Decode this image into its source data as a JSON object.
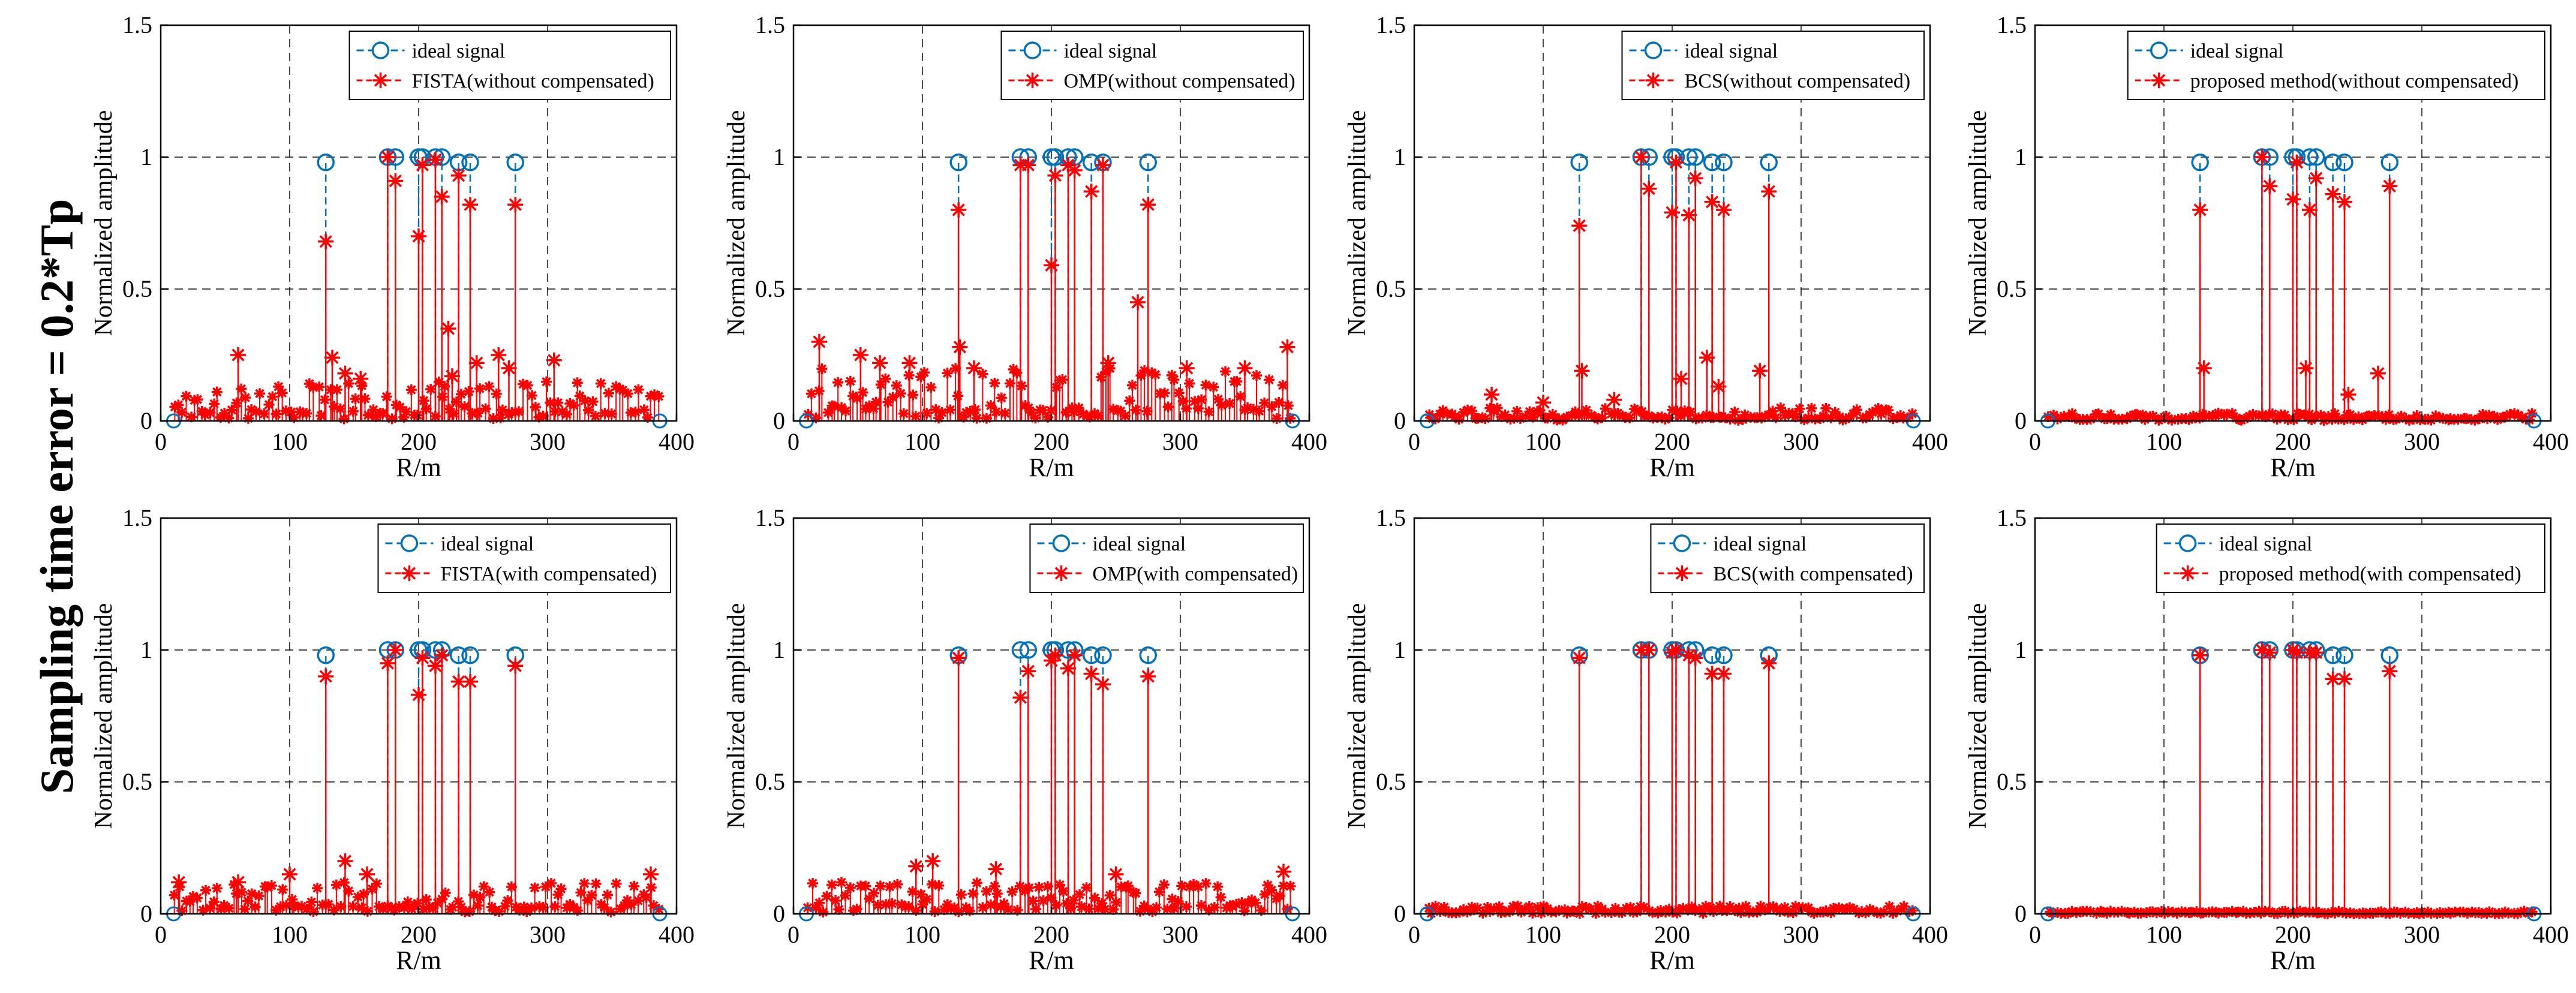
{
  "figure": {
    "row_label": "Sampling time error = 0.2*Tp",
    "colors": {
      "ideal": "#0072BD",
      "reconstructed": "#FF0000",
      "grid": "#000000",
      "axis": "#000000"
    }
  },
  "chart_data": [
    {
      "id": "fista-without",
      "type": "stem",
      "xlabel": "R/m",
      "ylabel": "Normalized amplitude",
      "xlim": [
        0,
        400
      ],
      "ylim": [
        0,
        1.5
      ],
      "xticks": [
        0,
        100,
        200,
        300,
        400
      ],
      "yticks": [
        0,
        0.5,
        1,
        1.5
      ],
      "legend": [
        "ideal signal",
        "FISTA(without compensated)"
      ],
      "legend_position": "top-right",
      "ideal": {
        "x": [
          128,
          176,
          182,
          200,
          203,
          213,
          218,
          231,
          240,
          275
        ],
        "y": [
          0.98,
          1.0,
          1.0,
          1.0,
          1.0,
          1.0,
          1.0,
          0.98,
          0.98,
          0.98
        ]
      },
      "recon_peaks": {
        "x": [
          128,
          176,
          182,
          200,
          203,
          213,
          218,
          231,
          240,
          275,
          133,
          223,
          60,
          262,
          305,
          270,
          143,
          245,
          155,
          226
        ],
        "y": [
          0.68,
          1.0,
          0.91,
          0.7,
          0.97,
          0.99,
          0.85,
          0.93,
          0.82,
          0.82,
          0.24,
          0.35,
          0.25,
          0.25,
          0.23,
          0.2,
          0.18,
          0.22,
          0.16,
          0.17
        ]
      },
      "noise_max": 0.15
    },
    {
      "id": "omp-without",
      "type": "stem",
      "xlabel": "R/m",
      "ylabel": "Normalized amplitude",
      "xlim": [
        0,
        400
      ],
      "ylim": [
        0,
        1.5
      ],
      "xticks": [
        0,
        100,
        200,
        300,
        400
      ],
      "yticks": [
        0,
        0.5,
        1,
        1.5
      ],
      "legend": [
        "ideal signal",
        "OMP(without compensated)"
      ],
      "legend_position": "top-right",
      "ideal": {
        "x": [
          128,
          176,
          182,
          200,
          203,
          213,
          218,
          231,
          240,
          275
        ],
        "y": [
          0.98,
          1.0,
          1.0,
          1.0,
          1.0,
          1.0,
          1.0,
          0.98,
          0.98,
          0.98
        ]
      },
      "recon_peaks": {
        "x": [
          128,
          176,
          182,
          200,
          203,
          213,
          218,
          231,
          240,
          275,
          129,
          267,
          383,
          20,
          52,
          67,
          90,
          140,
          244,
          305,
          350
        ],
        "y": [
          0.8,
          0.97,
          0.97,
          0.59,
          0.93,
          0.97,
          0.95,
          0.87,
          0.97,
          0.82,
          0.28,
          0.45,
          0.28,
          0.3,
          0.25,
          0.22,
          0.22,
          0.2,
          0.22,
          0.2,
          0.2
        ]
      },
      "noise_max": 0.2
    },
    {
      "id": "bcs-without",
      "type": "stem",
      "xlabel": "R/m",
      "ylabel": "Normalized amplitude",
      "xlim": [
        0,
        400
      ],
      "ylim": [
        0,
        1.5
      ],
      "xticks": [
        0,
        100,
        200,
        300,
        400
      ],
      "yticks": [
        0,
        0.5,
        1,
        1.5
      ],
      "legend": [
        "ideal signal",
        "BCS(without compensated)"
      ],
      "legend_position": "top-right",
      "ideal": {
        "x": [
          128,
          176,
          182,
          200,
          203,
          213,
          218,
          231,
          240,
          275
        ],
        "y": [
          0.98,
          1.0,
          1.0,
          1.0,
          1.0,
          1.0,
          1.0,
          0.98,
          0.98,
          0.98
        ]
      },
      "recon_peaks": {
        "x": [
          128,
          176,
          182,
          200,
          203,
          213,
          218,
          231,
          240,
          275,
          130,
          227,
          268,
          207,
          236,
          60,
          155,
          100
        ],
        "y": [
          0.74,
          1.0,
          0.88,
          0.79,
          0.98,
          0.78,
          0.92,
          0.83,
          0.8,
          0.87,
          0.19,
          0.24,
          0.19,
          0.16,
          0.13,
          0.1,
          0.08,
          0.07
        ]
      },
      "noise_max": 0.05
    },
    {
      "id": "proposed-without",
      "type": "stem",
      "xlabel": "R/m",
      "ylabel": "Normalized amplitude",
      "xlim": [
        0,
        400
      ],
      "ylim": [
        0,
        1.5
      ],
      "xticks": [
        0,
        100,
        200,
        300,
        400
      ],
      "yticks": [
        0,
        0.5,
        1,
        1.5
      ],
      "legend": [
        "ideal signal",
        "proposed method(without compensated)"
      ],
      "legend_position": "top-right",
      "ideal": {
        "x": [
          128,
          176,
          182,
          200,
          203,
          213,
          218,
          231,
          240,
          275
        ],
        "y": [
          0.98,
          1.0,
          1.0,
          1.0,
          1.0,
          1.0,
          1.0,
          0.98,
          0.98,
          0.98
        ]
      },
      "recon_peaks": {
        "x": [
          128,
          176,
          182,
          200,
          203,
          213,
          218,
          231,
          240,
          275,
          131,
          266,
          243,
          210
        ],
        "y": [
          0.8,
          1.0,
          0.89,
          0.84,
          0.98,
          0.8,
          0.92,
          0.86,
          0.83,
          0.89,
          0.2,
          0.18,
          0.1,
          0.2
        ]
      },
      "noise_max": 0.03
    },
    {
      "id": "fista-with",
      "type": "stem",
      "xlabel": "R/m",
      "ylabel": "Normalized amplitude",
      "xlim": [
        0,
        400
      ],
      "ylim": [
        0,
        1.5
      ],
      "xticks": [
        0,
        100,
        200,
        300,
        400
      ],
      "yticks": [
        0,
        0.5,
        1,
        1.5
      ],
      "legend": [
        "ideal signal",
        "FISTA(with compensated)"
      ],
      "legend_position": "top-right",
      "ideal": {
        "x": [
          128,
          176,
          182,
          200,
          203,
          213,
          218,
          231,
          240,
          275
        ],
        "y": [
          0.98,
          1.0,
          1.0,
          1.0,
          1.0,
          1.0,
          1.0,
          0.98,
          0.98,
          0.98
        ]
      },
      "recon_peaks": {
        "x": [
          128,
          176,
          182,
          200,
          203,
          213,
          218,
          231,
          240,
          275,
          143,
          160,
          100,
          60,
          380,
          14
        ],
        "y": [
          0.9,
          0.95,
          1.0,
          0.83,
          0.97,
          0.94,
          0.98,
          0.88,
          0.88,
          0.94,
          0.2,
          0.15,
          0.15,
          0.12,
          0.15,
          0.12
        ]
      },
      "noise_max": 0.12
    },
    {
      "id": "omp-with",
      "type": "stem",
      "xlabel": "R/m",
      "ylabel": "Normalized amplitude",
      "xlim": [
        0,
        400
      ],
      "ylim": [
        0,
        1.5
      ],
      "xticks": [
        0,
        100,
        200,
        300,
        400
      ],
      "yticks": [
        0,
        0.5,
        1,
        1.5
      ],
      "legend": [
        "ideal signal",
        "OMP(with compensated)"
      ],
      "legend_position": "top-right",
      "ideal": {
        "x": [
          128,
          176,
          182,
          200,
          203,
          213,
          218,
          231,
          240,
          275
        ],
        "y": [
          0.98,
          1.0,
          1.0,
          1.0,
          1.0,
          1.0,
          1.0,
          0.98,
          0.98,
          0.98
        ]
      },
      "recon_peaks": {
        "x": [
          128,
          176,
          182,
          200,
          203,
          213,
          218,
          231,
          240,
          275,
          95,
          108,
          157,
          250,
          380
        ],
        "y": [
          0.97,
          0.82,
          0.92,
          0.96,
          0.98,
          0.93,
          0.98,
          0.91,
          0.87,
          0.9,
          0.18,
          0.2,
          0.17,
          0.15,
          0.16
        ]
      },
      "noise_max": 0.12
    },
    {
      "id": "bcs-with",
      "type": "stem",
      "xlabel": "R/m",
      "ylabel": "Normalized amplitude",
      "xlim": [
        0,
        400
      ],
      "ylim": [
        0,
        1.5
      ],
      "xticks": [
        0,
        100,
        200,
        300,
        400
      ],
      "yticks": [
        0,
        0.5,
        1,
        1.5
      ],
      "legend": [
        "ideal signal",
        "BCS(with compensated)"
      ],
      "legend_position": "top-right",
      "ideal": {
        "x": [
          128,
          176,
          182,
          200,
          203,
          213,
          218,
          231,
          240,
          275
        ],
        "y": [
          0.98,
          1.0,
          1.0,
          1.0,
          1.0,
          1.0,
          1.0,
          0.98,
          0.98,
          0.98
        ]
      },
      "recon_peaks": {
        "x": [
          128,
          176,
          182,
          200,
          203,
          213,
          218,
          231,
          240,
          275
        ],
        "y": [
          0.97,
          1.0,
          1.0,
          0.99,
          1.0,
          0.98,
          0.97,
          0.91,
          0.91,
          0.95
        ]
      },
      "noise_max": 0.03
    },
    {
      "id": "proposed-with",
      "type": "stem",
      "xlabel": "R/m",
      "ylabel": "Normalized amplitude",
      "xlim": [
        0,
        400
      ],
      "ylim": [
        0,
        1.5
      ],
      "xticks": [
        0,
        100,
        200,
        300,
        400
      ],
      "yticks": [
        0,
        0.5,
        1,
        1.5
      ],
      "legend": [
        "ideal signal",
        "proposed method(with compensated)"
      ],
      "legend_position": "top-right",
      "ideal": {
        "x": [
          128,
          176,
          182,
          200,
          203,
          213,
          218,
          231,
          240,
          275
        ],
        "y": [
          0.98,
          1.0,
          1.0,
          1.0,
          1.0,
          1.0,
          1.0,
          0.98,
          0.98,
          0.98
        ]
      },
      "recon_peaks": {
        "x": [
          128,
          176,
          182,
          200,
          203,
          213,
          218,
          231,
          240,
          275
        ],
        "y": [
          0.98,
          1.0,
          0.99,
          1.0,
          0.99,
          0.99,
          0.99,
          0.89,
          0.89,
          0.92
        ]
      },
      "noise_max": 0.01
    }
  ]
}
